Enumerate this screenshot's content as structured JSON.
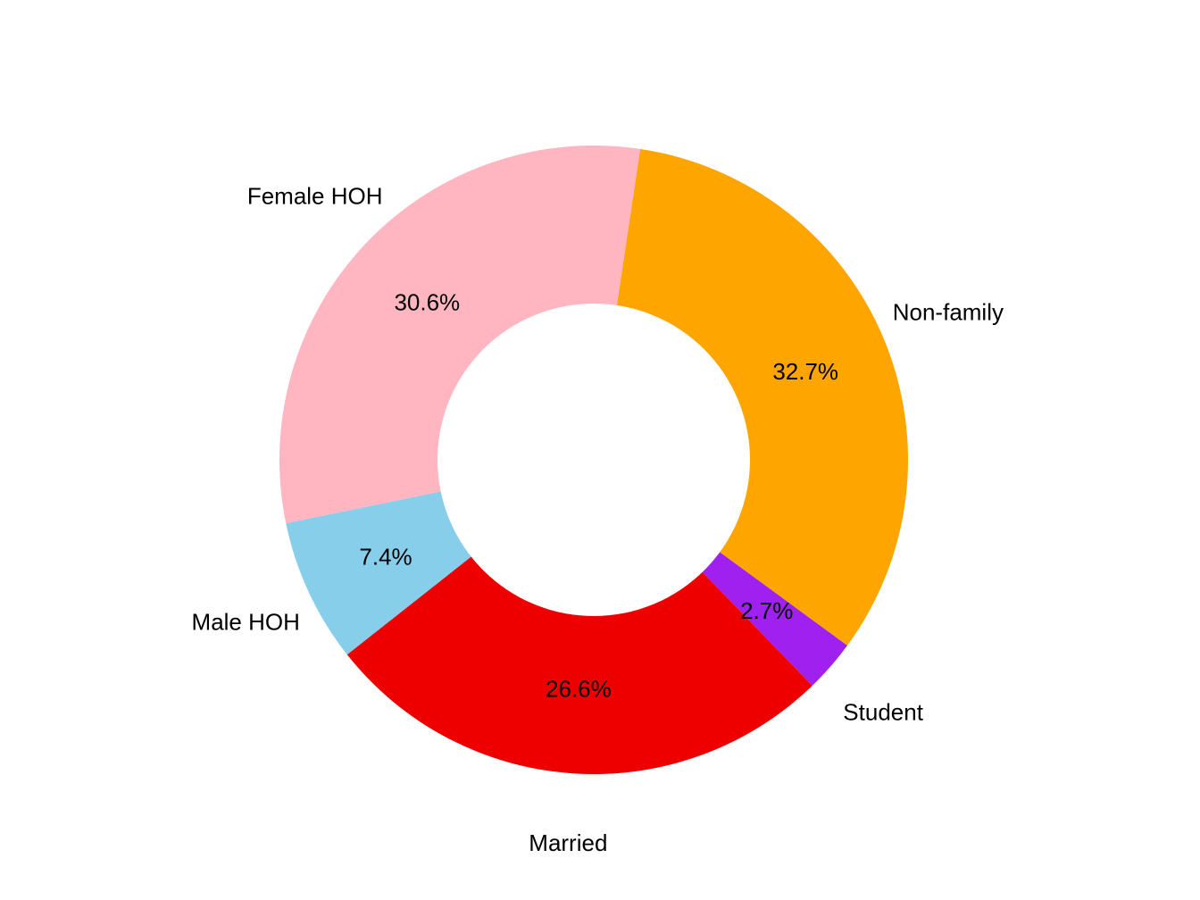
{
  "chart_data": {
    "type": "pie",
    "style": "donut",
    "title": "",
    "legend": "none",
    "slices": [
      {
        "label": "Non-family",
        "value": 32.7,
        "value_label": "32.7%",
        "color": "#FFA500"
      },
      {
        "label": "Student",
        "value": 2.7,
        "value_label": "2.7%",
        "color": "#A020F0"
      },
      {
        "label": "Married",
        "value": 26.6,
        "value_label": "26.6%",
        "color": "#EE0000"
      },
      {
        "label": "Male HOH",
        "value": 7.4,
        "value_label": "7.4%",
        "color": "#87CEEB"
      },
      {
        "label": "Female HOH",
        "value": 30.6,
        "value_label": "30.6%",
        "color": "#FFB6C1"
      }
    ]
  }
}
